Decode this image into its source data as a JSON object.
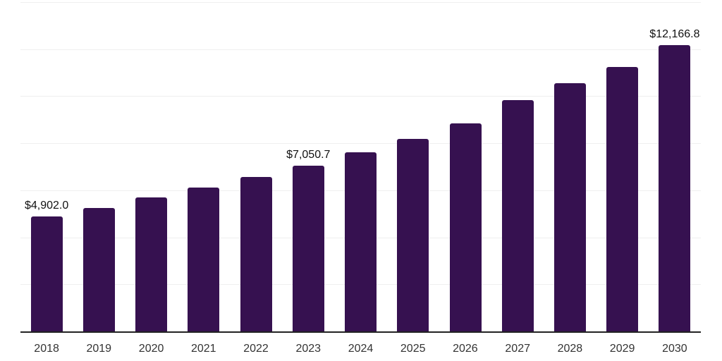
{
  "chart_data": {
    "type": "bar",
    "title": "",
    "xlabel": "",
    "ylabel": "",
    "categories": [
      "2018",
      "2019",
      "2020",
      "2021",
      "2022",
      "2023",
      "2024",
      "2025",
      "2026",
      "2027",
      "2028",
      "2029",
      "2030"
    ],
    "values": [
      4902.0,
      5255,
      5705,
      6110,
      6560,
      7050.7,
      7620,
      8200,
      8855,
      9820,
      10540,
      11250,
      12166.8
    ],
    "data_labels": {
      "2018": "$4,902.0",
      "2023": "$7,050.7",
      "2030": "$12,166.8"
    },
    "ylim": [
      0,
      14000
    ],
    "gridline_step": 2000,
    "grid": "horizontal-only",
    "y_tick_labels_visible": false,
    "legend": "none",
    "colors": {
      "bar": "#361150",
      "gridline": "#efefef",
      "axis_line": "#222222",
      "data_label": "#111111",
      "tick_label": "#333333",
      "background": "#ffffff"
    }
  }
}
